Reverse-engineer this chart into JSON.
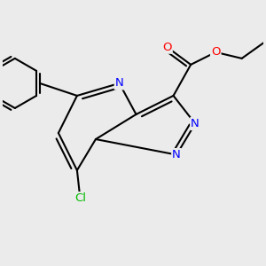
{
  "bg_color": "#ebebeb",
  "bond_color": "#000000",
  "bond_width": 1.5,
  "atom_colors": {
    "N": "#0000ff",
    "O": "#ff0000",
    "Cl": "#00bb00",
    "C": "#000000"
  },
  "font_size": 9.5,
  "fig_size": [
    3.0,
    3.0
  ],
  "dpi": 100,
  "xlim": [
    -2.1,
    2.1
  ],
  "ylim": [
    -1.9,
    1.9
  ]
}
